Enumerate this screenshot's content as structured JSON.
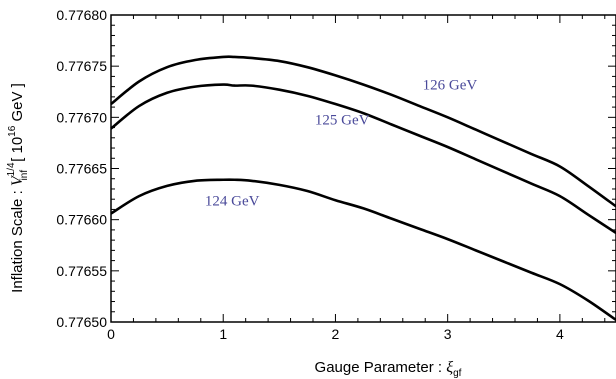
{
  "chart_data": {
    "type": "line",
    "xlabel": "Gauge Parameter : ",
    "xlabel_symbol": "ξ",
    "xlabel_sub": "gf",
    "ylabel": "Inflation Scale : ",
    "ylabel_symbol": "V",
    "ylabel_sup": "1/4",
    "ylabel_sub": "inf",
    "ylabel_unit": "[ 10",
    "ylabel_unit_sup": "16",
    "ylabel_unit_end": " GeV ]",
    "xlim": [
      0,
      4.5
    ],
    "ylim": [
      0.7765,
      0.7768
    ],
    "xticks": [
      0,
      1,
      2,
      3,
      4
    ],
    "xtick_labels": [
      "0",
      "1",
      "2",
      "3",
      "4"
    ],
    "yticks": [
      0.7765,
      0.77655,
      0.7766,
      0.77665,
      0.7767,
      0.77675,
      0.7768
    ],
    "ytick_labels": [
      "0.77650",
      "0.77655",
      "0.77660",
      "0.77665",
      "0.77670",
      "0.77675",
      "0.77680"
    ],
    "grid": false,
    "series": [
      {
        "name": "126 GeV",
        "x": [
          0,
          0.25,
          0.5,
          0.75,
          1.0,
          1.1,
          1.25,
          1.5,
          1.75,
          2.0,
          2.25,
          2.5,
          2.75,
          3.0,
          3.25,
          3.5,
          3.75,
          4.0,
          4.25,
          4.5
        ],
        "y": [
          0.776713,
          0.776735,
          0.776749,
          0.776756,
          0.776759,
          0.776759,
          0.776758,
          0.776755,
          0.776749,
          0.776741,
          0.776732,
          0.776722,
          0.776711,
          0.7767,
          0.776688,
          0.776676,
          0.776664,
          0.776652,
          0.776633,
          0.776613
        ]
      },
      {
        "name": "125 GeV",
        "x": [
          0,
          0.25,
          0.5,
          0.75,
          1.0,
          1.1,
          1.25,
          1.5,
          1.75,
          2.0,
          2.25,
          2.5,
          2.75,
          3.0,
          3.25,
          3.5,
          3.75,
          4.0,
          4.25,
          4.5
        ],
        "y": [
          0.776689,
          0.776711,
          0.776724,
          0.77673,
          0.776732,
          0.776731,
          0.776731,
          0.776727,
          0.776721,
          0.776713,
          0.776704,
          0.776693,
          0.776682,
          0.776671,
          0.776659,
          0.776647,
          0.776635,
          0.776623,
          0.776605,
          0.776587
        ]
      },
      {
        "name": "124 GeV",
        "x": [
          0,
          0.25,
          0.5,
          0.75,
          1.0,
          1.1,
          1.25,
          1.5,
          1.75,
          2.0,
          2.25,
          2.5,
          2.75,
          3.0,
          3.25,
          3.5,
          3.75,
          4.0,
          4.25,
          4.5
        ],
        "y": [
          0.776606,
          0.776623,
          0.776633,
          0.776638,
          0.776639,
          0.776639,
          0.776638,
          0.776634,
          0.776628,
          0.776619,
          0.776611,
          0.776601,
          0.776591,
          0.776581,
          0.77657,
          0.776559,
          0.776548,
          0.776537,
          0.776521,
          0.776502
        ]
      }
    ],
    "annotations": [
      {
        "text": "126 GeV",
        "x": 3.02,
        "y": 0.776727
      },
      {
        "text": "125 GeV",
        "x": 2.06,
        "y": 0.776693
      },
      {
        "text": "124 GeV",
        "x": 1.08,
        "y": 0.776614
      }
    ]
  }
}
